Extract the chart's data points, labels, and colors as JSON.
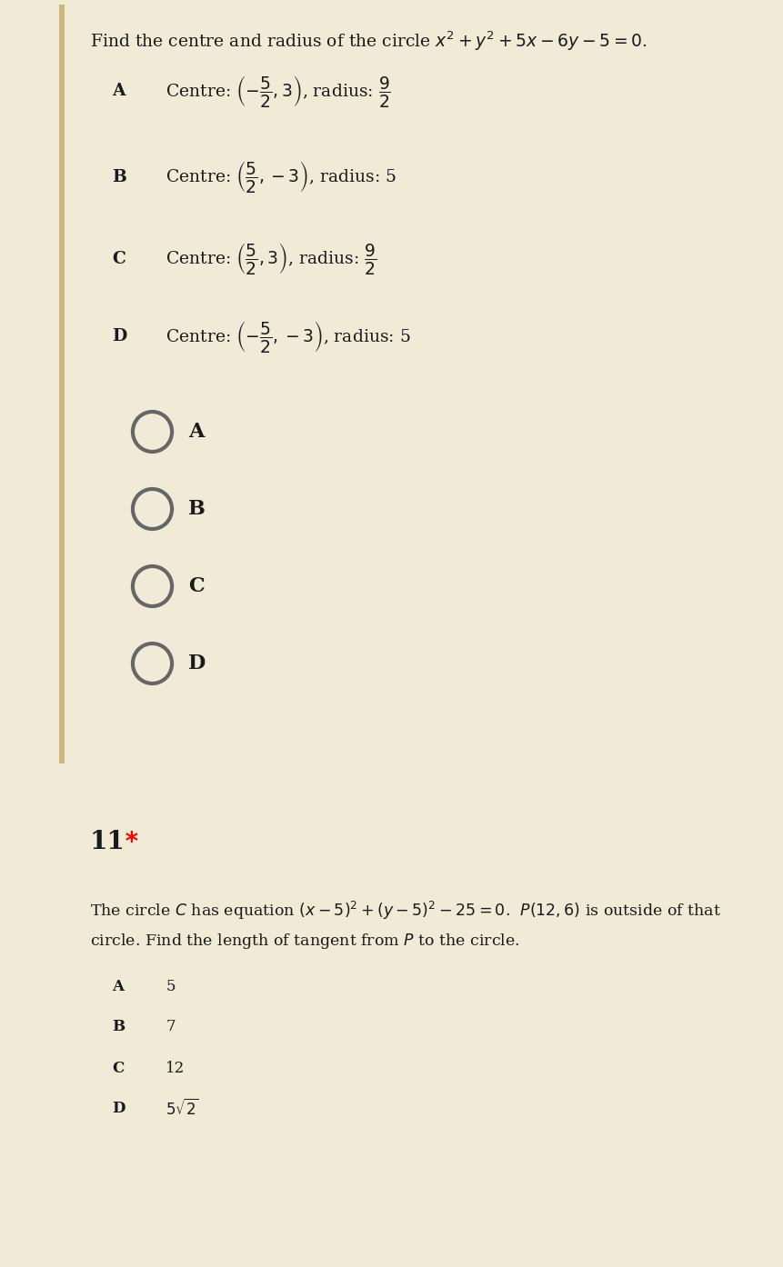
{
  "outer_bg": "#f0ead6",
  "card_bg": "#ffffff",
  "left_bar_color": "#c8b97a",
  "title_q10": "Find the centre and radius of the circle $x^2+y^2+5x-6y-5=0$.",
  "options_q10": [
    [
      "A",
      "Centre: $\\left(-\\dfrac{5}{2},3\\right)$, radius: $\\dfrac{9}{2}$"
    ],
    [
      "B",
      "Centre: $\\left(\\dfrac{5}{2},-3\\right)$, radius: 5"
    ],
    [
      "C",
      "Centre: $\\left(\\dfrac{5}{2},3\\right)$, radius: $\\dfrac{9}{2}$"
    ],
    [
      "D",
      "Centre: $\\left(-\\dfrac{5}{2},-3\\right)$, radius: 5"
    ]
  ],
  "radio_labels": [
    "A",
    "B",
    "C",
    "D"
  ],
  "q11_label": "11",
  "q11_star": " *",
  "q11_line1": "The circle $C$ has equation $(x-5)^2+(y-5)^2-25=0$.  $P(12,6)$ is outside of that",
  "q11_line2": "circle. Find the length of tangent from $P$ to the circle.",
  "options_q11": [
    [
      "A",
      "5"
    ],
    [
      "B",
      "7"
    ],
    [
      "C",
      "12"
    ],
    [
      "D",
      "$5\\sqrt{2}$"
    ]
  ],
  "text_color": "#1a1a1a",
  "radio_color": "#666666",
  "fontsize_title": 13.5,
  "fontsize_option": 13.5,
  "fontsize_radio_label": 16,
  "fontsize_q11_num": 20,
  "fontsize_q11_body": 12.5,
  "fontsize_q11_opt_label": 12,
  "fontsize_q11_opt": 12
}
